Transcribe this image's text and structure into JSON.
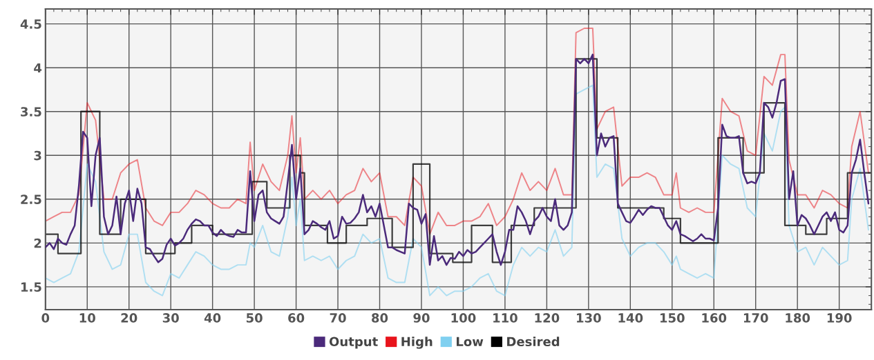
{
  "chart_data": {
    "type": "line",
    "xlim": [
      0,
      197.7
    ],
    "xticks": [
      0,
      10,
      20,
      30,
      40,
      50,
      60,
      70,
      80,
      90,
      100,
      110,
      120,
      130,
      140,
      150,
      160,
      170,
      180,
      190
    ],
    "ylim": [
      1.24,
      4.67
    ],
    "yticks": [
      1.5,
      2,
      2.5,
      3,
      3.5,
      4,
      4.5
    ],
    "grid": true,
    "legend": "bottom",
    "marker": "none",
    "line_style": "solid",
    "series": [
      {
        "name": "Output",
        "color": "#4b2a7b",
        "x": [
          0,
          1,
          2,
          3,
          4,
          5,
          6,
          7,
          8,
          9,
          10,
          11,
          12,
          13,
          14,
          15,
          16,
          17,
          18,
          19,
          20,
          21,
          22,
          23,
          24,
          25,
          26,
          27,
          28,
          29,
          30,
          31,
          32,
          33,
          34,
          35,
          36,
          37,
          38,
          39,
          40,
          41,
          42,
          43,
          44,
          45,
          46,
          47,
          48,
          49,
          50,
          51,
          52,
          53,
          54,
          55,
          56,
          57,
          58,
          59,
          60,
          61,
          62,
          63,
          64,
          65,
          66,
          67,
          68,
          69,
          70,
          71,
          72,
          73,
          74,
          75,
          76,
          77,
          78,
          79,
          80,
          81,
          82,
          83,
          84,
          85,
          86,
          87,
          88,
          89,
          90,
          91,
          92,
          93,
          94,
          95,
          96,
          97,
          98,
          99,
          100,
          101,
          102,
          103,
          104,
          105,
          106,
          107,
          108,
          109,
          110,
          111,
          112,
          113,
          114,
          115,
          116,
          117,
          118,
          119,
          120,
          121,
          122,
          123,
          124,
          125,
          126,
          127,
          128,
          129,
          130,
          131,
          132,
          133,
          134,
          135,
          136,
          137,
          138,
          139,
          140,
          141,
          142,
          143,
          144,
          145,
          146,
          147,
          148,
          149,
          150,
          151,
          152,
          153,
          154,
          155,
          156,
          157,
          158,
          159,
          160,
          161,
          162,
          163,
          164,
          165,
          166,
          167,
          168,
          169,
          170,
          171,
          172,
          173,
          174,
          175,
          176,
          177,
          178,
          179,
          180,
          181,
          182,
          183,
          184,
          185,
          186,
          187,
          188,
          189,
          190,
          191,
          192,
          193,
          194,
          195,
          196,
          197
        ],
        "values": [
          1.95,
          2.0,
          1.93,
          2.05,
          2.0,
          1.98,
          2.1,
          2.2,
          2.65,
          3.27,
          3.2,
          2.42,
          3.0,
          3.2,
          2.3,
          2.1,
          2.2,
          2.53,
          2.1,
          2.45,
          2.6,
          2.25,
          2.62,
          2.45,
          1.95,
          1.93,
          1.85,
          1.78,
          1.82,
          1.98,
          2.05,
          1.97,
          2.0,
          2.05,
          2.15,
          2.22,
          2.27,
          2.25,
          2.2,
          2.2,
          2.12,
          2.08,
          2.15,
          2.1,
          2.08,
          2.07,
          2.15,
          2.12,
          2.12,
          2.82,
          2.25,
          2.55,
          2.6,
          2.35,
          2.28,
          2.25,
          2.22,
          2.3,
          2.7,
          3.12,
          2.5,
          2.85,
          2.1,
          2.15,
          2.25,
          2.22,
          2.18,
          2.15,
          2.25,
          2.05,
          2.08,
          2.3,
          2.22,
          2.23,
          2.28,
          2.35,
          2.55,
          2.35,
          2.42,
          2.3,
          2.45,
          2.2,
          1.95,
          1.95,
          1.92,
          1.9,
          1.88,
          2.45,
          2.4,
          2.38,
          2.22,
          2.33,
          1.75,
          2.08,
          1.8,
          1.85,
          1.75,
          1.83,
          1.82,
          1.9,
          1.85,
          1.92,
          1.88,
          1.9,
          1.95,
          2.0,
          2.05,
          2.1,
          1.9,
          1.75,
          1.9,
          2.15,
          2.15,
          2.42,
          2.35,
          2.25,
          2.1,
          2.25,
          2.3,
          2.4,
          2.3,
          2.25,
          2.5,
          2.2,
          2.15,
          2.2,
          2.35,
          4.1,
          4.05,
          4.1,
          4.05,
          4.15,
          3.0,
          3.25,
          3.1,
          3.2,
          3.22,
          2.45,
          2.35,
          2.25,
          2.23,
          2.3,
          2.38,
          2.32,
          2.38,
          2.42,
          2.4,
          2.4,
          2.3,
          2.2,
          2.15,
          2.25,
          2.1,
          2.08,
          2.05,
          2.02,
          2.05,
          2.1,
          2.05,
          2.05,
          2.03,
          2.4,
          3.35,
          3.22,
          3.2,
          3.2,
          3.22,
          2.8,
          2.68,
          2.7,
          2.68,
          2.8,
          3.6,
          3.55,
          3.43,
          3.6,
          3.85,
          3.87,
          2.5,
          2.82,
          2.2,
          2.32,
          2.28,
          2.2,
          2.1,
          2.2,
          2.3,
          2.35,
          2.25,
          2.35,
          2.15,
          2.12,
          2.2,
          2.8,
          2.95,
          3.18,
          2.8,
          2.45
        ]
      },
      {
        "name": "High",
        "color": "#e8141c",
        "x": [
          0,
          2,
          4,
          6,
          8,
          10,
          12,
          14,
          16,
          18,
          20,
          22,
          24,
          26,
          28,
          30,
          32,
          34,
          36,
          38,
          40,
          42,
          44,
          46,
          48,
          49,
          50,
          52,
          54,
          56,
          58,
          59,
          60,
          61,
          62,
          64,
          66,
          68,
          70,
          72,
          74,
          76,
          78,
          80,
          82,
          84,
          86,
          88,
          90,
          92,
          94,
          96,
          98,
          100,
          102,
          104,
          106,
          108,
          110,
          112,
          114,
          116,
          118,
          120,
          122,
          124,
          126,
          127,
          129,
          131,
          132,
          134,
          136,
          138,
          140,
          142,
          144,
          146,
          148,
          150,
          151,
          152,
          154,
          156,
          158,
          160,
          162,
          164,
          166,
          168,
          170,
          172,
          174,
          176,
          177,
          178,
          180,
          182,
          184,
          186,
          188,
          190,
          192,
          193,
          195,
          197
        ],
        "values": [
          2.25,
          2.3,
          2.35,
          2.35,
          2.55,
          3.6,
          3.4,
          2.5,
          2.5,
          2.8,
          2.9,
          2.95,
          2.4,
          2.25,
          2.2,
          2.35,
          2.35,
          2.45,
          2.6,
          2.55,
          2.45,
          2.4,
          2.4,
          2.5,
          2.45,
          3.15,
          2.6,
          2.9,
          2.7,
          2.6,
          3.0,
          3.45,
          2.8,
          3.2,
          2.5,
          2.6,
          2.5,
          2.6,
          2.45,
          2.55,
          2.6,
          2.85,
          2.7,
          2.8,
          2.3,
          2.3,
          2.2,
          2.75,
          2.65,
          2.1,
          2.35,
          2.2,
          2.2,
          2.25,
          2.25,
          2.3,
          2.45,
          2.2,
          2.3,
          2.5,
          2.8,
          2.6,
          2.7,
          2.6,
          2.85,
          2.55,
          2.55,
          4.4,
          4.45,
          4.45,
          3.3,
          3.5,
          3.55,
          2.65,
          2.75,
          2.75,
          2.8,
          2.75,
          2.55,
          2.55,
          2.8,
          2.4,
          2.35,
          2.4,
          2.35,
          2.35,
          3.65,
          3.5,
          3.45,
          3.05,
          3.0,
          3.9,
          3.8,
          4.15,
          4.15,
          2.95,
          2.55,
          2.55,
          2.4,
          2.6,
          2.55,
          2.45,
          2.4,
          3.1,
          3.5,
          2.8
        ]
      },
      {
        "name": "Low",
        "color": "#80d0f0",
        "x": [
          0,
          2,
          4,
          6,
          8,
          10,
          12,
          14,
          16,
          18,
          20,
          22,
          24,
          26,
          28,
          30,
          32,
          34,
          36,
          38,
          40,
          42,
          44,
          46,
          48,
          49,
          50,
          52,
          54,
          56,
          58,
          59,
          60,
          61,
          62,
          64,
          66,
          68,
          70,
          72,
          74,
          76,
          78,
          80,
          82,
          84,
          86,
          88,
          90,
          92,
          94,
          96,
          98,
          100,
          102,
          104,
          106,
          108,
          110,
          112,
          114,
          116,
          118,
          120,
          122,
          124,
          126,
          127,
          129,
          131,
          132,
          134,
          136,
          138,
          140,
          142,
          144,
          146,
          148,
          150,
          151,
          152,
          154,
          156,
          158,
          160,
          162,
          164,
          166,
          168,
          170,
          172,
          174,
          176,
          177,
          178,
          180,
          182,
          184,
          186,
          188,
          190,
          192,
          193,
          195,
          197
        ],
        "values": [
          1.6,
          1.55,
          1.6,
          1.65,
          1.9,
          2.9,
          2.7,
          1.9,
          1.7,
          1.75,
          2.1,
          2.1,
          1.55,
          1.45,
          1.4,
          1.65,
          1.6,
          1.75,
          1.9,
          1.85,
          1.75,
          1.7,
          1.7,
          1.75,
          1.75,
          2.0,
          1.95,
          2.2,
          1.9,
          1.85,
          2.3,
          2.75,
          2.2,
          2.5,
          1.8,
          1.85,
          1.8,
          1.85,
          1.7,
          1.8,
          1.85,
          2.1,
          2.0,
          2.05,
          1.6,
          1.55,
          1.55,
          2.05,
          1.95,
          1.4,
          1.5,
          1.4,
          1.45,
          1.45,
          1.5,
          1.6,
          1.65,
          1.45,
          1.4,
          1.75,
          1.95,
          1.85,
          1.95,
          1.9,
          2.15,
          1.85,
          1.95,
          3.7,
          3.75,
          3.8,
          2.75,
          2.9,
          2.85,
          2.05,
          1.85,
          1.95,
          2.0,
          2.0,
          1.9,
          1.75,
          1.85,
          1.7,
          1.65,
          1.6,
          1.65,
          1.6,
          3.0,
          2.9,
          2.85,
          2.4,
          2.3,
          3.25,
          3.05,
          3.5,
          3.55,
          2.2,
          1.9,
          1.95,
          1.75,
          1.95,
          1.85,
          1.75,
          1.8,
          2.5,
          2.85,
          2.15
        ]
      },
      {
        "name": "Desired",
        "color": "#000000",
        "type": "step",
        "x": [
          0,
          3,
          8.5,
          13,
          18,
          24,
          31,
          35,
          40,
          49.5,
          53,
          58.5,
          61,
          62,
          67.5,
          72,
          77,
          83,
          88,
          92,
          97.5,
          102,
          107,
          111.5,
          117,
          127,
          132,
          137,
          148,
          152,
          161,
          167,
          172,
          177,
          182,
          187,
          192,
          197.5
        ],
        "values": [
          2.1,
          1.88,
          3.5,
          2.1,
          2.5,
          1.88,
          2.0,
          2.2,
          2.1,
          2.7,
          2.4,
          3.0,
          2.8,
          2.2,
          2.0,
          2.2,
          2.28,
          1.95,
          2.9,
          1.88,
          1.78,
          2.2,
          1.78,
          2.2,
          2.4,
          4.1,
          3.2,
          2.4,
          2.28,
          2.0,
          3.2,
          2.8,
          3.6,
          2.2,
          2.1,
          2.28,
          2.8,
          2.8
        ]
      }
    ]
  }
}
